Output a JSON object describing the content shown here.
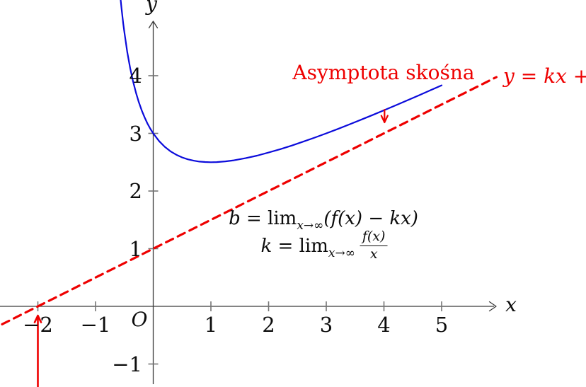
{
  "figure": {
    "background": "#ffffff",
    "colors": {
      "curve": "#0b0bdb",
      "accent_red": "#ee0000",
      "axis": "#3a3a3a",
      "tick": "#757575",
      "text": "#0c0c0c"
    }
  },
  "chart_data": {
    "type": "line",
    "title": "",
    "axes": {
      "xlabel": "x",
      "ylabel": "y",
      "origin_label": "O",
      "x_ticks": [
        -2,
        -1,
        1,
        2,
        3,
        4,
        5
      ],
      "y_ticks": [
        -1,
        1,
        2,
        3,
        4
      ],
      "xlim": [
        -2.65,
        6.0
      ],
      "ylim": [
        -1.4,
        5.35
      ],
      "grid": false,
      "legend": "none"
    },
    "series": [
      {
        "name": "f(x) curve",
        "style": "solid",
        "color": "#0b0bdb",
        "points": [
          [
            -0.566,
            5.325
          ],
          [
            -0.55,
            5.169
          ],
          [
            -0.52,
            4.907
          ],
          [
            -0.5,
            4.75
          ],
          [
            -0.45,
            4.411
          ],
          [
            -0.4,
            4.133
          ],
          [
            -0.35,
            3.902
          ],
          [
            -0.3,
            3.707
          ],
          [
            -0.25,
            3.542
          ],
          [
            -0.2,
            3.4
          ],
          [
            -0.15,
            3.278
          ],
          [
            -0.1,
            3.172
          ],
          [
            -0.05,
            3.08
          ],
          [
            0,
            3
          ],
          [
            0.1,
            2.868
          ],
          [
            0.2,
            2.767
          ],
          [
            0.3,
            2.688
          ],
          [
            0.4,
            2.629
          ],
          [
            0.5,
            2.583
          ],
          [
            0.6,
            2.55
          ],
          [
            0.7,
            2.526
          ],
          [
            0.8,
            2.511
          ],
          [
            0.9,
            2.503
          ],
          [
            1,
            2.5
          ],
          [
            1.1,
            2.502
          ],
          [
            1.25,
            2.514
          ],
          [
            1.4,
            2.533
          ],
          [
            1.6,
            2.569
          ],
          [
            1.8,
            2.614
          ],
          [
            2,
            2.667
          ],
          [
            2.2,
            2.725
          ],
          [
            2.4,
            2.788
          ],
          [
            2.6,
            2.856
          ],
          [
            2.8,
            2.926
          ],
          [
            3,
            3
          ],
          [
            3.2,
            3.076
          ],
          [
            3.4,
            3.155
          ],
          [
            3.6,
            3.235
          ],
          [
            3.8,
            3.317
          ],
          [
            4,
            3.4
          ],
          [
            4.2,
            3.485
          ],
          [
            4.4,
            3.57
          ],
          [
            4.6,
            3.657
          ],
          [
            4.8,
            3.745
          ],
          [
            5,
            3.833
          ]
        ]
      },
      {
        "name": "oblique asymptote y = kx + b",
        "style": "dashed",
        "color": "#ee0000",
        "points": [
          [
            -2.62,
            -0.31
          ],
          [
            5.95,
            3.975
          ]
        ]
      }
    ],
    "arrows": [
      {
        "name": "marker-arrow-at-x-minus-2",
        "direction": "up",
        "x": -2,
        "y_from": -1.4,
        "y_to": -0.16,
        "color": "#ee0000",
        "width": 2.6
      },
      {
        "name": "pointer-arrow-to-asymptote",
        "direction": "down",
        "x": 4.01,
        "y_from": 3.41,
        "y_to": 3.19,
        "color": "#ee0000",
        "width": 2.2
      }
    ],
    "annotations": {
      "asymptote_title": "Asymptota skośna",
      "asymptote_equation": "y = kx + b",
      "formula_b": {
        "lhs": "b",
        "eq": " = lim",
        "sub": "x→∞",
        "rhs": "(f(x) − kx)"
      },
      "formula_k": {
        "lhs": "k",
        "eq": " = lim",
        "sub": "x→∞",
        "num": "f(x)",
        "den": "x"
      }
    }
  }
}
